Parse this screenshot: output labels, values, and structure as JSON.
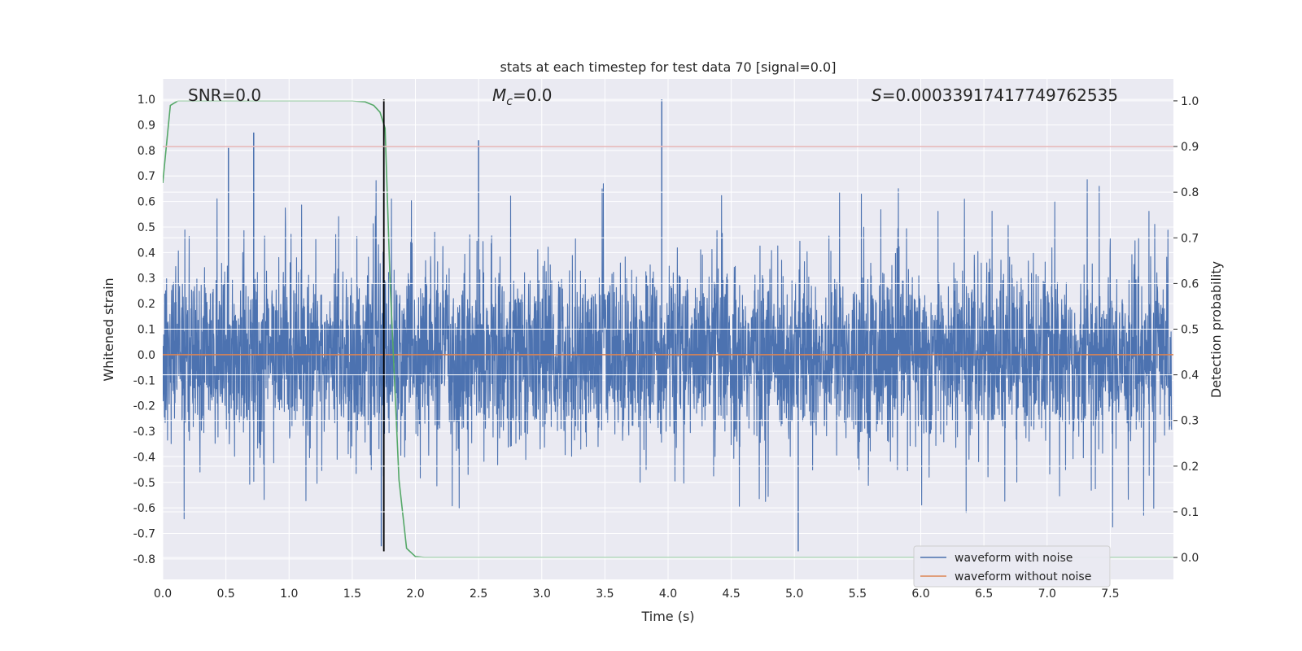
{
  "chart_data": {
    "type": "line",
    "title": "stats at each timestep for test data 70 [signal=0.0]",
    "xlabel": "Time (s)",
    "ylabel": "Whitened strain",
    "y2label": "Detection probability",
    "xlim": [
      0.0,
      8.0
    ],
    "ylim": [
      -0.88,
      1.08
    ],
    "y2lim": [
      -0.048,
      1.048
    ],
    "xticks": [
      "0.0",
      "0.5",
      "1.0",
      "1.5",
      "2.0",
      "2.5",
      "3.0",
      "3.5",
      "4.0",
      "4.5",
      "5.0",
      "5.5",
      "6.0",
      "6.5",
      "7.0",
      "7.5"
    ],
    "yticks": [
      "-0.8",
      "-0.7",
      "-0.6",
      "-0.5",
      "-0.4",
      "-0.3",
      "-0.2",
      "-0.1",
      "0.0",
      "0.1",
      "0.2",
      "0.3",
      "0.4",
      "0.5",
      "0.6",
      "0.7",
      "0.8",
      "0.9",
      "1.0"
    ],
    "y2ticks": [
      "0.0",
      "0.1",
      "0.2",
      "0.3",
      "0.4",
      "0.5",
      "0.6",
      "0.7",
      "0.8",
      "0.9",
      "1.0"
    ],
    "grid": true,
    "legend_position": "bottom-right",
    "annotations": {
      "snr": "SNR=0.0",
      "mc_symbol": "M",
      "mc_sub": "c",
      "mc_value": "=0.0",
      "s_symbol": "S",
      "s_value": "=0.00033917417749762535"
    },
    "series": [
      {
        "name": "waveform with noise",
        "axis": "left",
        "color": "#4c72b0",
        "description": "dense noisy whitened strain, roughly symmetric about 0",
        "notable_peaks": [
          {
            "x": 0.52,
            "y": 0.81
          },
          {
            "x": 0.72,
            "y": 0.87
          },
          {
            "x": 2.5,
            "y": 0.84
          },
          {
            "x": 3.95,
            "y": 1.0
          },
          {
            "x": 5.03,
            "y": -0.77
          },
          {
            "x": 1.73,
            "y": -0.75
          }
        ]
      },
      {
        "name": "waveform without noise",
        "axis": "left",
        "color": "#dd8452",
        "x": [
          0.0,
          8.0
        ],
        "values": [
          0.0,
          0.0
        ]
      },
      {
        "axis": "right",
        "color": "#55a868",
        "x": [
          0.0,
          0.06,
          0.12,
          0.25,
          0.5,
          1.0,
          1.5,
          1.6,
          1.67,
          1.72,
          1.76,
          1.8,
          1.87,
          1.93,
          2.0,
          2.07,
          2.5,
          8.0
        ],
        "values": [
          0.82,
          0.99,
          1.0,
          1.0,
          1.0,
          1.0,
          1.0,
          0.998,
          0.99,
          0.975,
          0.94,
          0.6,
          0.17,
          0.02,
          0.002,
          0.0,
          0.0,
          0.0
        ]
      },
      {
        "axis": "right",
        "color": "#c44e52",
        "x": [
          0.0,
          8.0
        ],
        "values": [
          0.9,
          0.9
        ]
      },
      {
        "axis": "left",
        "color": "#000000",
        "x": [
          1.75,
          1.75
        ],
        "values": [
          -0.77,
          1.0
        ]
      }
    ]
  },
  "colors": {
    "plot_bg": "#eaeaf2",
    "grid": "#ffffff",
    "text": "#262626"
  }
}
